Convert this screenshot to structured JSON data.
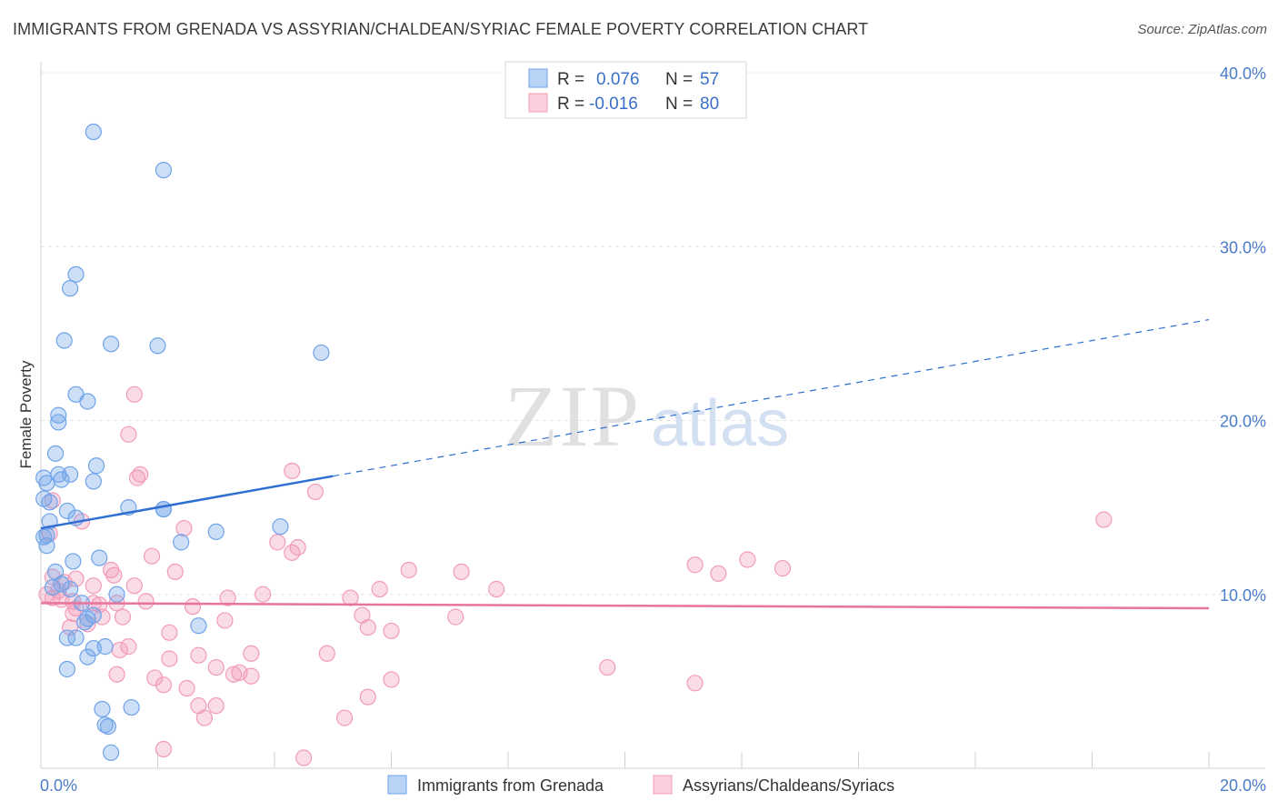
{
  "title": "IMMIGRANTS FROM GRENADA VS ASSYRIAN/CHALDEAN/SYRIAC FEMALE POVERTY CORRELATION CHART",
  "source": "Source: ZipAtlas.com",
  "watermark": {
    "zip": "ZIP",
    "atlas": "atlas"
  },
  "chart_data": {
    "type": "scatter",
    "ylabel": "Female Poverty",
    "xlabel": "",
    "xlim": [
      0,
      20
    ],
    "ylim": [
      0,
      40
    ],
    "x_ticks": [
      {
        "v": 0,
        "label": "0.0%"
      },
      {
        "v": 20,
        "label": "20.0%"
      }
    ],
    "y_ticks": [
      {
        "v": 10,
        "label": "10.0%"
      },
      {
        "v": 20,
        "label": "20.0%"
      },
      {
        "v": 30,
        "label": "30.0%"
      },
      {
        "v": 40,
        "label": "40.0%"
      }
    ],
    "legend_stats": [
      {
        "r_label": "R = ",
        "r": "0.076",
        "n_label": "N = ",
        "n": "57"
      },
      {
        "r_label": "R = ",
        "r": "-0.016",
        "n_label": "N = ",
        "n": "80"
      }
    ],
    "series": [
      {
        "name": "Immigrants from Grenada",
        "color": "#6fa3e8",
        "line_color": "#2f6fd1",
        "trend": {
          "x0": 0,
          "y0": 13.8,
          "x_solid_end": 5.0,
          "x1": 20,
          "y1": 25.8
        },
        "points": [
          [
            0.9,
            36.6
          ],
          [
            2.1,
            34.4
          ],
          [
            0.6,
            28.4
          ],
          [
            0.5,
            27.6
          ],
          [
            0.4,
            24.6
          ],
          [
            1.2,
            24.4
          ],
          [
            2.0,
            24.3
          ],
          [
            4.8,
            23.9
          ],
          [
            0.6,
            21.5
          ],
          [
            0.8,
            21.1
          ],
          [
            0.3,
            20.3
          ],
          [
            0.3,
            19.9
          ],
          [
            0.25,
            18.1
          ],
          [
            0.95,
            17.4
          ],
          [
            0.3,
            16.9
          ],
          [
            0.5,
            16.9
          ],
          [
            0.35,
            16.6
          ],
          [
            0.9,
            16.5
          ],
          [
            0.05,
            16.7
          ],
          [
            0.1,
            16.4
          ],
          [
            0.05,
            15.5
          ],
          [
            0.15,
            15.3
          ],
          [
            1.5,
            15.0
          ],
          [
            0.45,
            14.8
          ],
          [
            2.1,
            14.9
          ],
          [
            2.1,
            14.9
          ],
          [
            0.6,
            14.4
          ],
          [
            0.15,
            14.2
          ],
          [
            0.1,
            13.4
          ],
          [
            0.1,
            12.8
          ],
          [
            3.0,
            13.6
          ],
          [
            4.1,
            13.9
          ],
          [
            2.4,
            13.0
          ],
          [
            0.55,
            11.9
          ],
          [
            1.0,
            12.1
          ],
          [
            0.25,
            11.3
          ],
          [
            0.35,
            10.6
          ],
          [
            0.5,
            10.3
          ],
          [
            0.2,
            10.4
          ],
          [
            1.3,
            10.0
          ],
          [
            0.7,
            9.5
          ],
          [
            0.9,
            8.8
          ],
          [
            0.8,
            8.6
          ],
          [
            0.75,
            8.4
          ],
          [
            2.7,
            8.2
          ],
          [
            0.45,
            7.5
          ],
          [
            0.6,
            7.5
          ],
          [
            1.1,
            7.0
          ],
          [
            0.9,
            6.9
          ],
          [
            0.8,
            6.4
          ],
          [
            0.45,
            5.7
          ],
          [
            1.05,
            3.4
          ],
          [
            1.55,
            3.5
          ],
          [
            1.1,
            2.5
          ],
          [
            1.15,
            2.4
          ],
          [
            1.2,
            0.9
          ],
          [
            0.05,
            13.3
          ]
        ]
      },
      {
        "name": "Assyrians/Chaldeans/Syriacs",
        "color": "#f29bb8",
        "line_color": "#e8749c",
        "trend": {
          "x0": 0,
          "y0": 9.5,
          "x1": 20,
          "y1": 9.2
        },
        "points": [
          [
            1.6,
            21.5
          ],
          [
            1.5,
            19.2
          ],
          [
            4.3,
            17.1
          ],
          [
            1.7,
            16.9
          ],
          [
            1.65,
            16.7
          ],
          [
            4.7,
            15.9
          ],
          [
            0.2,
            15.4
          ],
          [
            0.7,
            14.2
          ],
          [
            2.45,
            13.8
          ],
          [
            0.15,
            13.5
          ],
          [
            4.05,
            13.0
          ],
          [
            4.4,
            12.7
          ],
          [
            4.3,
            12.4
          ],
          [
            1.9,
            12.2
          ],
          [
            18.2,
            14.3
          ],
          [
            11.2,
            11.7
          ],
          [
            12.1,
            12.0
          ],
          [
            11.6,
            11.2
          ],
          [
            12.7,
            11.5
          ],
          [
            6.3,
            11.4
          ],
          [
            7.2,
            11.3
          ],
          [
            2.3,
            11.3
          ],
          [
            1.2,
            11.4
          ],
          [
            1.25,
            11.1
          ],
          [
            0.2,
            11.0
          ],
          [
            0.6,
            10.9
          ],
          [
            0.9,
            10.5
          ],
          [
            1.6,
            10.5
          ],
          [
            5.8,
            10.3
          ],
          [
            7.8,
            10.3
          ],
          [
            0.3,
            10.2
          ],
          [
            3.8,
            10.0
          ],
          [
            0.1,
            10.0
          ],
          [
            0.2,
            9.8
          ],
          [
            3.2,
            9.8
          ],
          [
            5.3,
            9.8
          ],
          [
            0.55,
            9.6
          ],
          [
            1.8,
            9.6
          ],
          [
            0.9,
            9.5
          ],
          [
            1.3,
            9.5
          ],
          [
            2.6,
            9.3
          ],
          [
            0.55,
            8.9
          ],
          [
            5.5,
            8.8
          ],
          [
            1.4,
            8.7
          ],
          [
            1.05,
            8.7
          ],
          [
            3.15,
            8.5
          ],
          [
            7.1,
            8.7
          ],
          [
            5.6,
            8.1
          ],
          [
            6.0,
            7.9
          ],
          [
            2.2,
            7.8
          ],
          [
            0.5,
            8.1
          ],
          [
            0.8,
            8.3
          ],
          [
            1.5,
            7.0
          ],
          [
            1.35,
            6.8
          ],
          [
            3.6,
            6.6
          ],
          [
            2.7,
            6.5
          ],
          [
            4.9,
            6.6
          ],
          [
            2.2,
            6.3
          ],
          [
            3.0,
            5.8
          ],
          [
            9.7,
            5.8
          ],
          [
            1.3,
            5.4
          ],
          [
            3.3,
            5.4
          ],
          [
            3.4,
            5.5
          ],
          [
            3.6,
            5.3
          ],
          [
            1.95,
            5.2
          ],
          [
            6.0,
            5.1
          ],
          [
            2.1,
            4.8
          ],
          [
            2.5,
            4.6
          ],
          [
            11.2,
            4.9
          ],
          [
            5.6,
            4.1
          ],
          [
            2.7,
            3.6
          ],
          [
            3.0,
            3.6
          ],
          [
            2.8,
            2.9
          ],
          [
            5.2,
            2.9
          ],
          [
            2.1,
            1.1
          ],
          [
            4.5,
            0.6
          ],
          [
            0.4,
            10.7
          ],
          [
            0.35,
            9.7
          ],
          [
            1.0,
            9.4
          ],
          [
            0.6,
            9.2
          ]
        ]
      }
    ]
  }
}
